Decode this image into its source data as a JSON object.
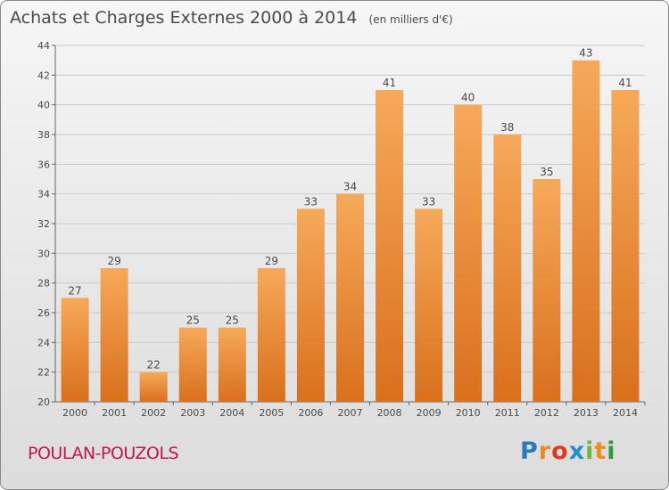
{
  "header": {
    "title": "Achats et Charges Externes 2000 à 2014",
    "unit": "(en milliers d'€)"
  },
  "footer": {
    "place": "POULAN-POUZOLS",
    "brand": "Proxiti"
  },
  "colors": {
    "bar_top": "#f6a95a",
    "bar_bottom": "#d9701c",
    "text": "#4a4a4a",
    "place": "#c0174d",
    "brand_letters": [
      "#2a7ab8",
      "#f08a1e",
      "#e03a1e",
      "#1f8fd6",
      "#6bb73a",
      "#f08a1e",
      "#2a9a3a"
    ]
  },
  "chart_data": {
    "type": "bar",
    "title": "Achats et Charges Externes 2000 à 2014",
    "subtitle": "(en milliers d'€)",
    "xlabel": "",
    "ylabel": "",
    "categories": [
      "2000",
      "2001",
      "2002",
      "2003",
      "2004",
      "2005",
      "2006",
      "2007",
      "2008",
      "2009",
      "2010",
      "2011",
      "2012",
      "2013",
      "2014"
    ],
    "values": [
      27,
      29,
      22,
      25,
      25,
      29,
      33,
      34,
      41,
      33,
      40,
      38,
      35,
      43,
      41
    ],
    "ylim": [
      20,
      44
    ],
    "yticks": [
      20,
      22,
      24,
      26,
      28,
      30,
      32,
      34,
      36,
      38,
      40,
      42,
      44
    ],
    "grid": true,
    "data_labels": true,
    "legend": "none"
  }
}
